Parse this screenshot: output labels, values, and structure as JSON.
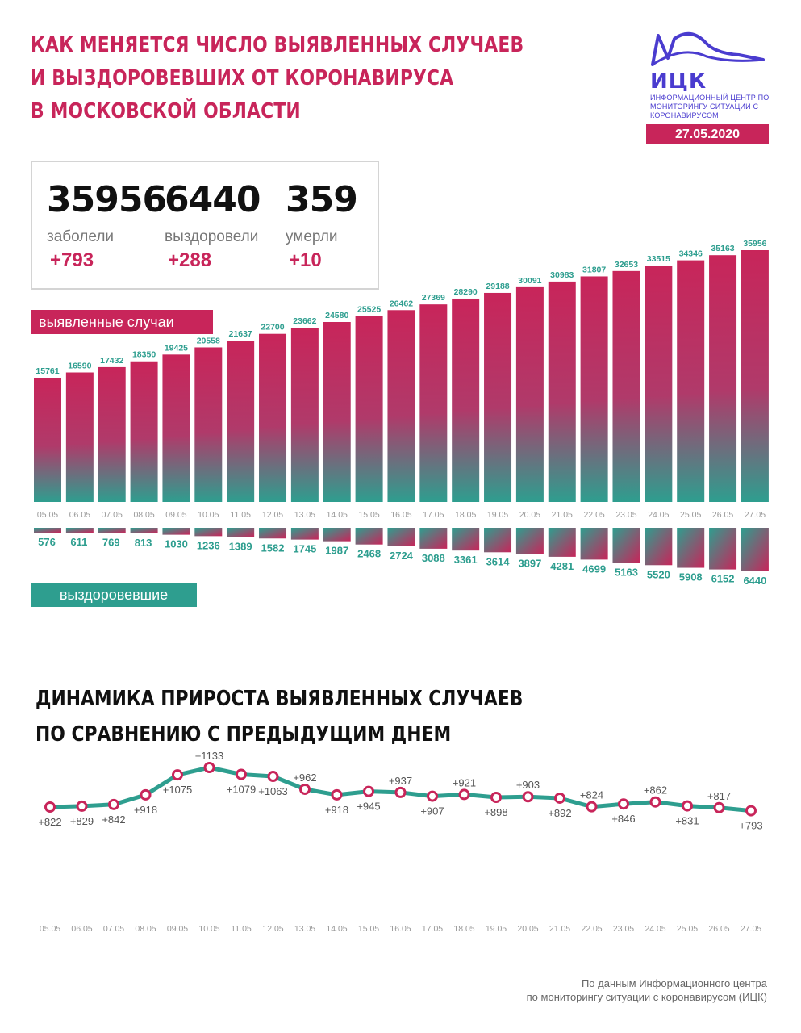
{
  "header": {
    "title_lines": [
      "Как меняется число выявленных случаев",
      "и выздоровевших от коронавируса",
      "в Московской области"
    ],
    "logo_name": "ИЦК",
    "logo_sub": "Информационный центр по мониторингу ситуации с коронавирусом",
    "date": "27.05.2020"
  },
  "stats": [
    {
      "value": "35956",
      "label": "заболели",
      "increment": "+793"
    },
    {
      "value": "6440",
      "label": "выздоровели",
      "increment": "+288"
    },
    {
      "value": "359",
      "label": "умерли",
      "increment": "+10"
    }
  ],
  "tags": {
    "cases": "выявленные случаи",
    "recovered": "выздоровевшие"
  },
  "colors": {
    "accent_pink": "#c8255a",
    "accent_teal": "#2e9e8f",
    "logo_blue": "#4a3ccf"
  },
  "growth_section": {
    "title_lines": [
      "Динамика прироста выявленных случаев",
      "по сравнению с предыдущим днем"
    ]
  },
  "footer": {
    "lines": [
      "По данным Информационного центра",
      "по мониторингу ситуации с коронавирусом (ИЦК)"
    ]
  },
  "chart_data": [
    {
      "type": "bar",
      "categories": [
        "05.05",
        "06.05",
        "07.05",
        "08.05",
        "09.05",
        "10.05",
        "11.05",
        "12.05",
        "13.05",
        "14.05",
        "15.05",
        "16.05",
        "17.05",
        "18.05",
        "19.05",
        "20.05",
        "21.05",
        "22.05",
        "23.05",
        "24.05",
        "25.05",
        "26.05",
        "27.05"
      ],
      "series": [
        {
          "name": "выявленные случаи",
          "values": [
            15761,
            16590,
            17432,
            18350,
            19425,
            20558,
            21637,
            22700,
            23662,
            24580,
            25525,
            26462,
            27369,
            28290,
            29188,
            30091,
            30983,
            31807,
            32653,
            33515,
            34346,
            35163,
            35956
          ]
        },
        {
          "name": "выздоровевшие",
          "values": [
            576,
            611,
            769,
            813,
            1030,
            1236,
            1389,
            1582,
            1745,
            1987,
            2468,
            2724,
            3088,
            3361,
            3614,
            3897,
            4281,
            4699,
            5163,
            5520,
            5908,
            6152,
            6440
          ]
        }
      ]
    },
    {
      "type": "line",
      "x": [
        "05.05",
        "06.05",
        "07.05",
        "08.05",
        "09.05",
        "10.05",
        "11.05",
        "12.05",
        "13.05",
        "14.05",
        "15.05",
        "16.05",
        "17.05",
        "18.05",
        "19.05",
        "20.05",
        "21.05",
        "22.05",
        "23.05",
        "24.05",
        "25.05",
        "26.05",
        "27.05"
      ],
      "values": [
        822,
        829,
        842,
        918,
        1075,
        1133,
        1079,
        1063,
        962,
        918,
        945,
        937,
        907,
        921,
        898,
        903,
        892,
        824,
        846,
        862,
        831,
        817,
        793
      ],
      "labels": [
        "+822",
        "+829",
        "+842",
        "+918",
        "+1075",
        "+1133",
        "+1079",
        "+1063",
        "+962",
        "+918",
        "+945",
        "+937",
        "+907",
        "+921",
        "+898",
        "+903",
        "+892",
        "+824",
        "+846",
        "+862",
        "+831",
        "+817",
        "+793"
      ],
      "label_pos": [
        "below",
        "below",
        "below",
        "below",
        "below",
        "above",
        "below",
        "below",
        "above",
        "below",
        "below",
        "above",
        "below",
        "above",
        "below",
        "above",
        "below",
        "above",
        "below",
        "above",
        "below",
        "above",
        "below"
      ]
    }
  ]
}
